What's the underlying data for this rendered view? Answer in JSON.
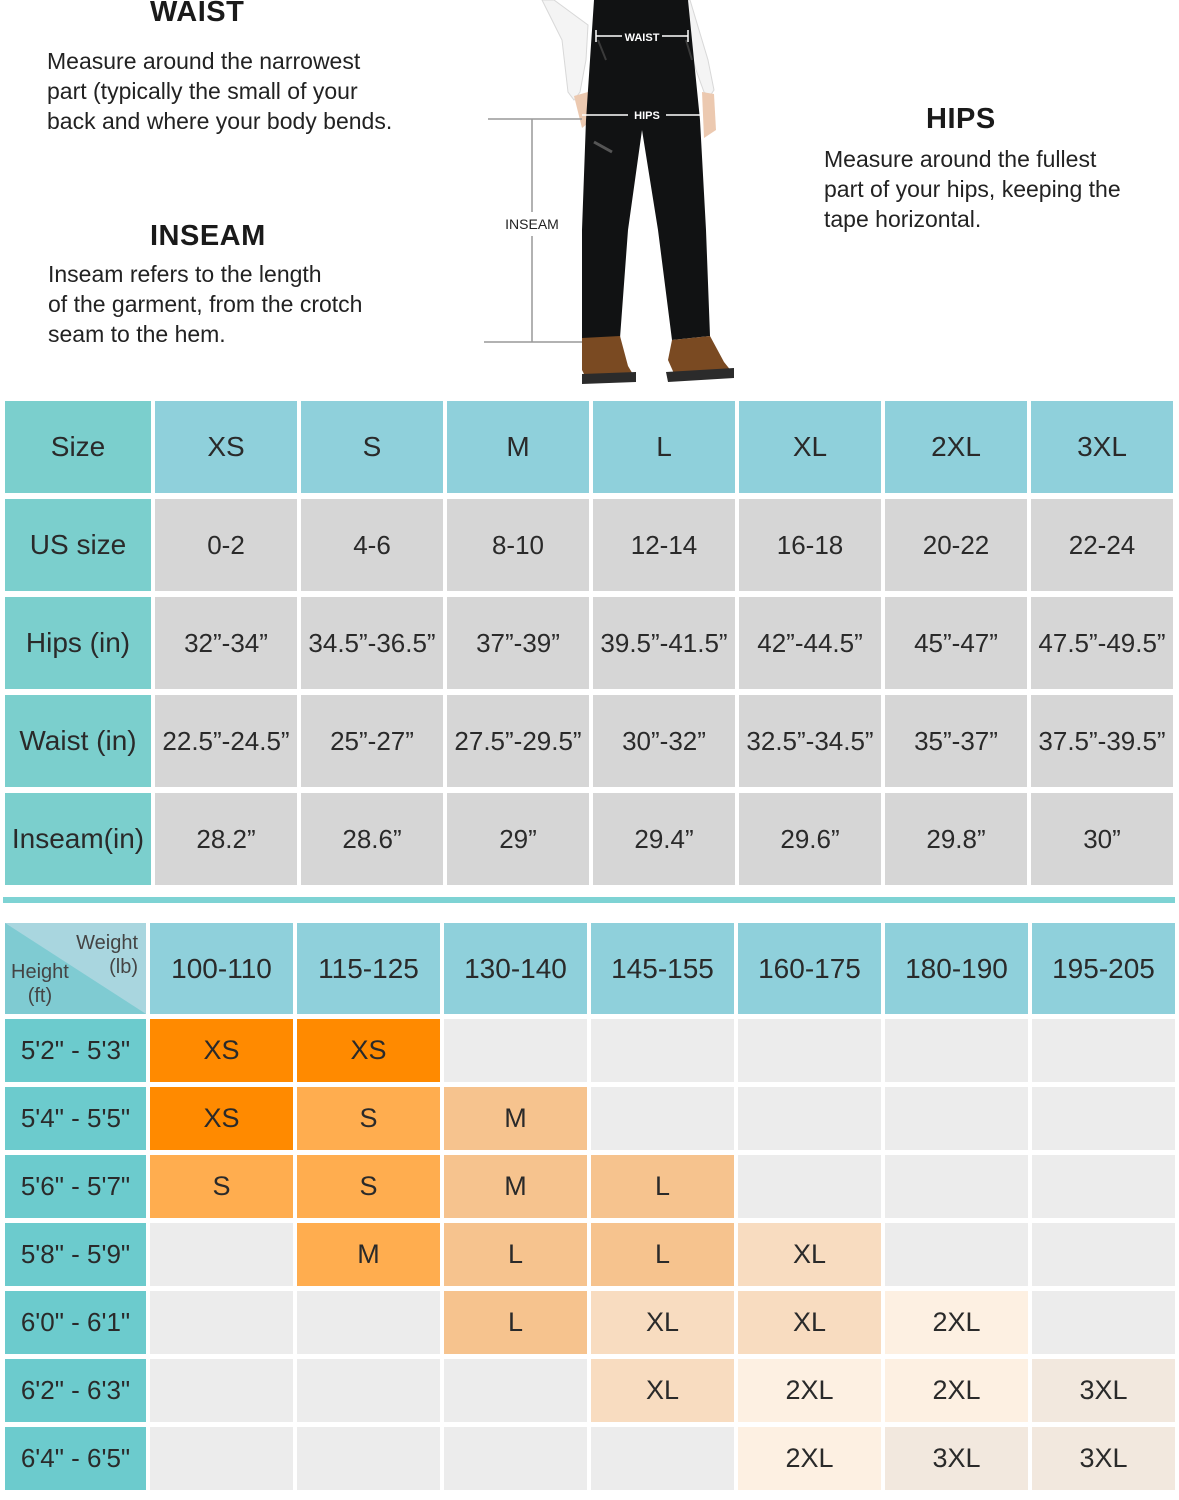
{
  "intro": {
    "waist": {
      "title": "WAIST",
      "lines": [
        "Measure around the narrowest",
        "part (typically the small of your",
        "back and where your body bends."
      ]
    },
    "inseam": {
      "title": "INSEAM",
      "lines": [
        "Inseam refers to the length",
        "of the garment, from the crotch",
        "seam to the hem."
      ]
    },
    "hips": {
      "title": "HIPS",
      "lines": [
        "Measure around the fullest",
        "part of your hips, keeping the",
        "tape horizontal."
      ]
    },
    "figure_labels": {
      "waist": "WAIST",
      "hips": "HIPS",
      "inseam": "INSEAM"
    }
  },
  "size_table": {
    "header": [
      "Size",
      "XS",
      "S",
      "M",
      "L",
      "XL",
      "2XL",
      "3XL"
    ],
    "rows": [
      [
        "US size",
        "0-2",
        "4-6",
        "8-10",
        "12-14",
        "16-18",
        "20-22",
        "22-24"
      ],
      [
        "Hips (in)",
        "32”-34”",
        "34.5”-36.5”",
        "37”-39”",
        "39.5”-41.5”",
        "42”-44.5”",
        "45”-47”",
        "47.5”-49.5”"
      ],
      [
        "Waist (in)",
        "22.5”-24.5”",
        "25”-27”",
        "27.5”-29.5”",
        "30”-32”",
        "32.5”-34.5”",
        "35”-37”",
        "37.5”-39.5”"
      ],
      [
        "Inseam(in)",
        "28.2”",
        "28.6”",
        "29”",
        "29.4”",
        "29.6”",
        "29.8”",
        "30”"
      ]
    ]
  },
  "fit_table": {
    "corner": {
      "weight": "Weight",
      "weight_unit": "(lb)",
      "height": "Height",
      "height_unit": "(ft)"
    },
    "weights": [
      "100-110",
      "115-125",
      "130-140",
      "145-155",
      "160-175",
      "180-190",
      "195-205"
    ],
    "rows": [
      {
        "height": "5'2\" - 5'3\"",
        "cells": [
          "XS",
          "XS",
          "",
          "",
          "",
          "",
          ""
        ]
      },
      {
        "height": "5'4\" - 5'5\"",
        "cells": [
          "XS",
          "S",
          "M",
          "",
          "",
          "",
          ""
        ]
      },
      {
        "height": "5'6\" - 5'7\"",
        "cells": [
          "S",
          "S",
          "M",
          "L",
          "",
          "",
          ""
        ]
      },
      {
        "height": "5'8\" - 5'9\"",
        "cells": [
          "",
          "M",
          "L",
          "L",
          "XL",
          "",
          ""
        ]
      },
      {
        "height": "6'0\" - 6'1\"",
        "cells": [
          "",
          "",
          "L",
          "XL",
          "XL",
          "2XL",
          ""
        ]
      },
      {
        "height": "6'2\" - 6'3\"",
        "cells": [
          "",
          "",
          "",
          "XL",
          "2XL",
          "2XL",
          "3XL"
        ]
      },
      {
        "height": "6'4\" - 6'5\"",
        "cells": [
          "",
          "",
          "",
          "",
          "2XL",
          "3XL",
          "3XL"
        ]
      }
    ],
    "colors": {
      "empty": "#ececec",
      "xs": "#ff8a00",
      "s": "#ffad4f",
      "m": "#f6c38e",
      "l": "#f8dcc0",
      "xl": "#fdf0e2",
      "xxl": "#f2e8de"
    }
  }
}
